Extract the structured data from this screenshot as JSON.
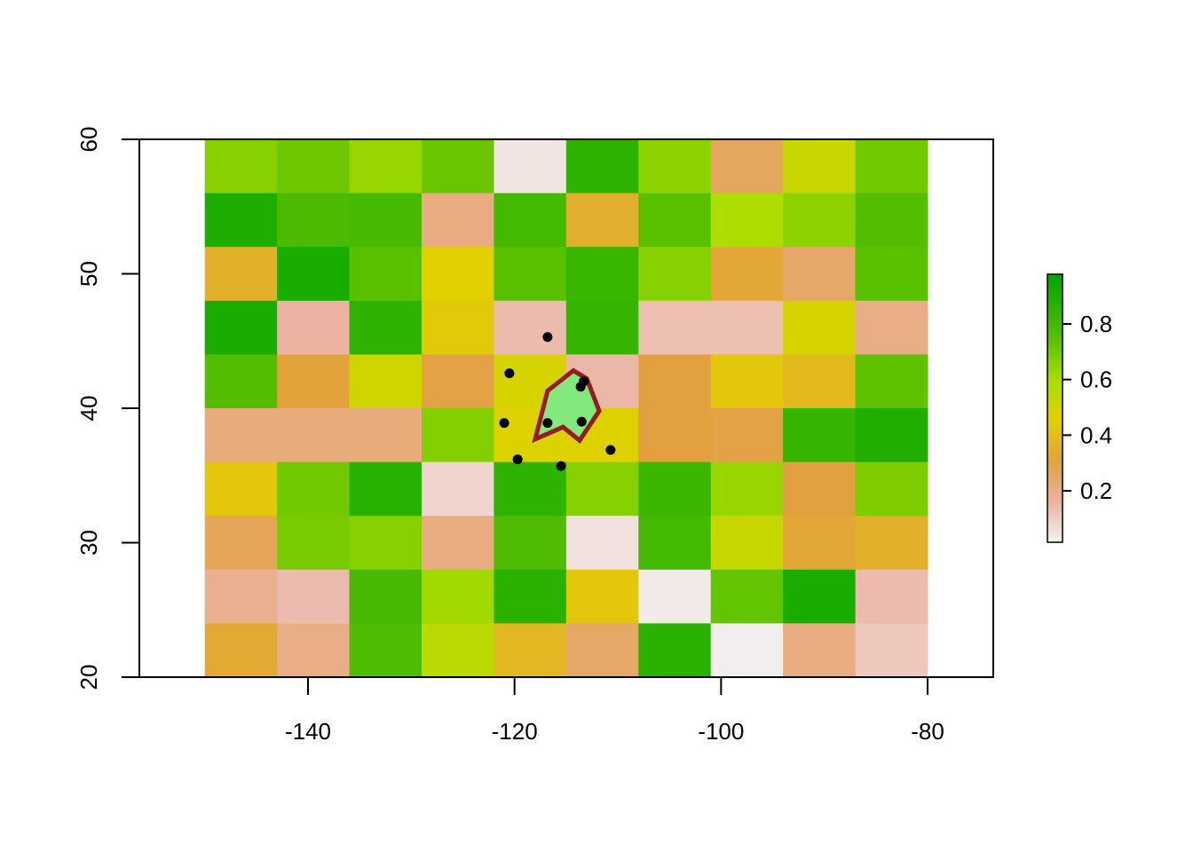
{
  "chart_data": {
    "type": "heatmap",
    "title": "",
    "xlabel": "",
    "ylabel": "",
    "xlim": [
      -150,
      -80
    ],
    "ylim": [
      20,
      60
    ],
    "x_ticks": [
      -140,
      -120,
      -100,
      -80
    ],
    "y_ticks": [
      20,
      30,
      40,
      50,
      60
    ],
    "x_tick_labels": [
      "-140",
      "-120",
      "-100",
      "-80"
    ],
    "y_tick_labels": [
      "20",
      "30",
      "40",
      "50",
      "60"
    ],
    "raster": {
      "xmin": -150,
      "xmax": -80,
      "ymin": 20,
      "ymax": 60,
      "ncol": 10,
      "nrow": 10,
      "values": [
        [
          0.67,
          0.72,
          0.64,
          0.73,
          0.03,
          0.87,
          0.66,
          0.25,
          0.52,
          0.71
        ],
        [
          0.92,
          0.79,
          0.8,
          0.2,
          0.81,
          0.34,
          0.76,
          0.6,
          0.66,
          0.77
        ],
        [
          0.35,
          0.93,
          0.76,
          0.45,
          0.76,
          0.84,
          0.67,
          0.32,
          0.24,
          0.76
        ],
        [
          0.93,
          0.15,
          0.87,
          0.43,
          0.13,
          0.85,
          0.12,
          0.12,
          0.48,
          0.19
        ],
        [
          0.77,
          0.31,
          0.5,
          0.29,
          0.48,
          0.14,
          0.3,
          0.42,
          0.38,
          0.75
        ],
        [
          0.21,
          0.21,
          0.21,
          0.68,
          0.47,
          0.46,
          0.3,
          0.29,
          0.85,
          0.91
        ],
        [
          0.42,
          0.71,
          0.89,
          0.07,
          0.87,
          0.67,
          0.83,
          0.64,
          0.3,
          0.69
        ],
        [
          0.26,
          0.7,
          0.67,
          0.2,
          0.78,
          0.04,
          0.81,
          0.53,
          0.32,
          0.35
        ],
        [
          0.18,
          0.13,
          0.8,
          0.62,
          0.88,
          0.42,
          0.02,
          0.74,
          0.93,
          0.13
        ],
        [
          0.33,
          0.19,
          0.78,
          0.56,
          0.37,
          0.24,
          0.88,
          0.01,
          0.2,
          0.1
        ]
      ]
    },
    "legend": {
      "placement": "right",
      "range": [
        0,
        1
      ],
      "ticks": [
        0.2,
        0.4,
        0.6,
        0.8
      ],
      "tick_labels": [
        "0.2",
        "0.4",
        "0.6",
        "0.8"
      ]
    },
    "points": [
      {
        "x": -116.8,
        "y": 45.3
      },
      {
        "x": -120.5,
        "y": 42.6
      },
      {
        "x": -113.3,
        "y": 42.0
      },
      {
        "x": -113.6,
        "y": 41.6
      },
      {
        "x": -121.0,
        "y": 38.9
      },
      {
        "x": -116.8,
        "y": 38.9
      },
      {
        "x": -113.5,
        "y": 39.0
      },
      {
        "x": -110.7,
        "y": 36.9
      },
      {
        "x": -119.7,
        "y": 36.2
      },
      {
        "x": -115.5,
        "y": 35.7
      }
    ],
    "polygon": [
      {
        "x": -118.0,
        "y": 37.7
      },
      {
        "x": -116.8,
        "y": 41.3
      },
      {
        "x": -114.3,
        "y": 42.8
      },
      {
        "x": -113.0,
        "y": 42.2
      },
      {
        "x": -111.8,
        "y": 39.8
      },
      {
        "x": -113.7,
        "y": 37.6
      },
      {
        "x": -115.3,
        "y": 38.6
      }
    ],
    "colors": {
      "polygon_fill": "#82ea7c",
      "polygon_stroke": "#961b22",
      "points": "#000000",
      "axis": "#000000"
    }
  }
}
